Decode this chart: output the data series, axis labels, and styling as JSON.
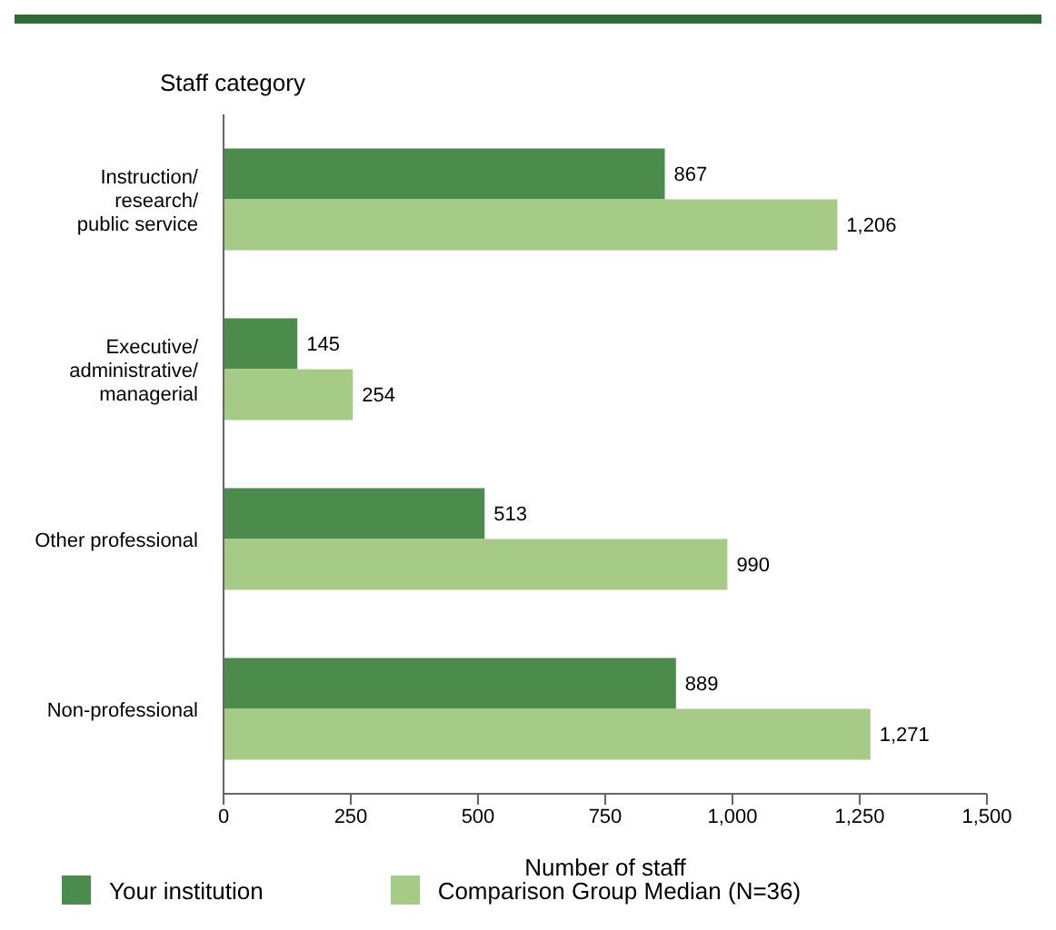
{
  "chart_data": {
    "type": "bar",
    "orientation": "horizontal",
    "ylabel": "Staff category",
    "xlabel": "Number of staff",
    "categories": [
      "Instruction/\nresearch/\npublic service",
      "Executive/\nadministrative/\nmanagerial",
      "Other professional",
      "Non-professional"
    ],
    "series": [
      {
        "name": "Your institution",
        "color": "#4b8b4b",
        "values": [
          867,
          145,
          513,
          889
        ],
        "value_labels": [
          "867",
          "145",
          "513",
          "889"
        ]
      },
      {
        "name": "Comparison Group Median (N=36)",
        "color": "#a6cb86",
        "values": [
          1206,
          254,
          990,
          1271
        ],
        "value_labels": [
          "1,206",
          "254",
          "990",
          "1,271"
        ]
      }
    ],
    "xlim": [
      0,
      1500
    ],
    "xticks": [
      0,
      250,
      500,
      750,
      {
        "value": 1000,
        "label": "1,000"
      },
      {
        "value": 1250,
        "label": "1,250"
      },
      {
        "value": 1500,
        "label": "1,500"
      }
    ],
    "legend": "bottom"
  }
}
